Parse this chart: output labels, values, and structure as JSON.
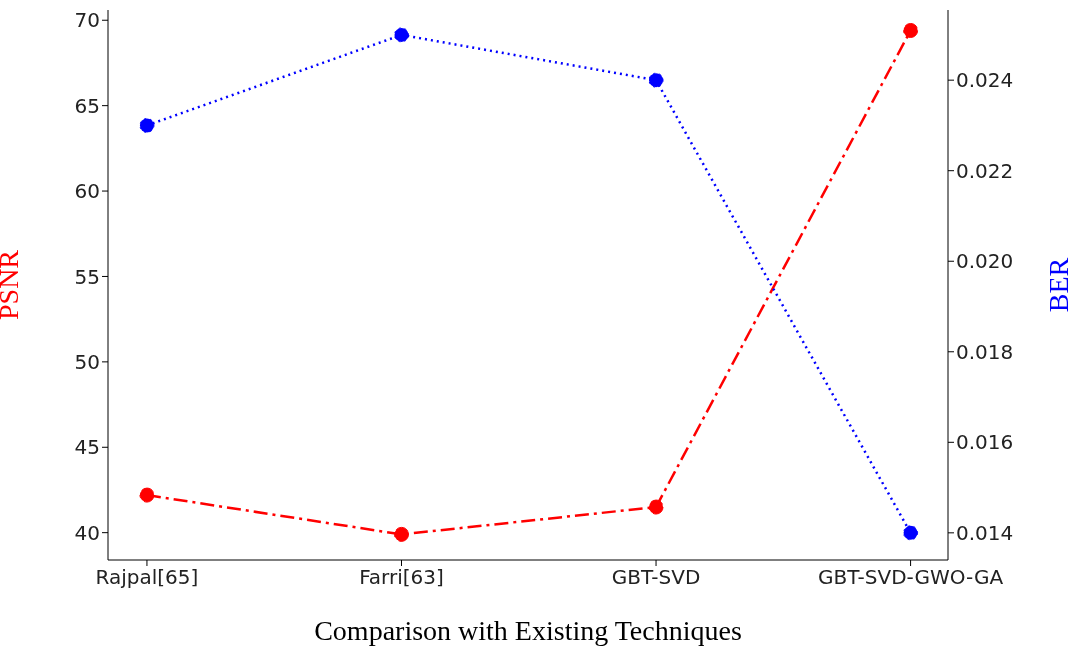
{
  "chart_data": {
    "type": "line",
    "categories": [
      "Rajpal[65]",
      "Farri[63]",
      "GBT-SVD",
      "GBT-SVD-GWO-GA"
    ],
    "xlabel": "Comparison with Existing Techniques",
    "ylabel": "PSNR",
    "y2label": "BER",
    "series": [
      {
        "color": "#ff0000",
        "values": [
          42.2,
          39.9,
          41.5,
          69.4
        ],
        "line_style": "dashed",
        "axis": "y"
      },
      {
        "color": "#0000ff",
        "values": [
          0.023,
          0.025,
          0.024,
          0.014
        ],
        "line_style": "dotted",
        "axis": "y2"
      }
    ],
    "ylim": [
      38.4,
      70.6
    ],
    "yticks": [
      40,
      45,
      50,
      55,
      60,
      65,
      70
    ],
    "y2lim": [
      0.0134,
      0.02555
    ],
    "y2ticks": [
      {
        "value": 0.014,
        "label": "0.014"
      },
      {
        "value": 0.016,
        "label": "0.016"
      },
      {
        "value": 0.018,
        "label": "0.018"
      },
      {
        "value": 0.02,
        "label": "0.020"
      },
      {
        "value": 0.022,
        "label": "0.022"
      },
      {
        "value": 0.024,
        "label": "0.024"
      }
    ],
    "marker": "circle",
    "grid": false,
    "legend": false
  }
}
